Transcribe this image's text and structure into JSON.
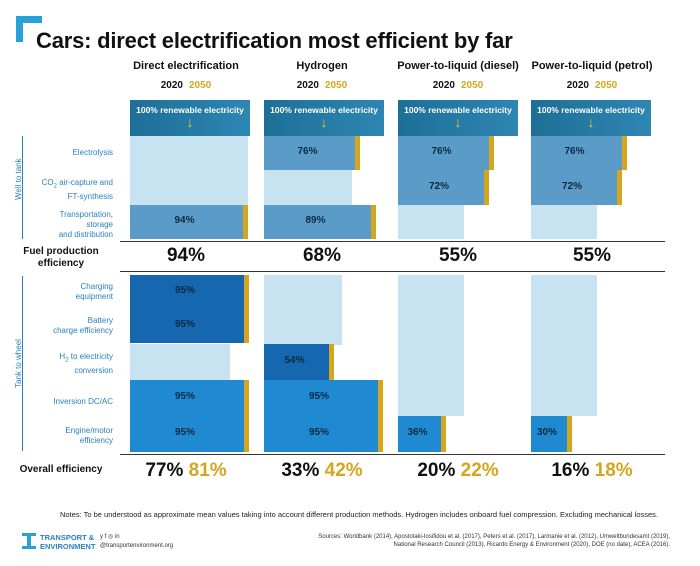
{
  "title": "Cars: direct electrification most efficient by far",
  "years": {
    "y1": "2020",
    "y2": "2050"
  },
  "columns": [
    {
      "name": "Direct electrification",
      "fuel_efficiency": "94%",
      "overall_2020": "77%",
      "overall_2050": "81%"
    },
    {
      "name": "Hydrogen",
      "fuel_efficiency": "68%",
      "overall_2020": "33%",
      "overall_2050": "42%"
    },
    {
      "name": "Power-to-liquid (diesel)",
      "fuel_efficiency": "55%",
      "overall_2020": "20%",
      "overall_2050": "22%"
    },
    {
      "name": "Power-to-liquid (petrol)",
      "fuel_efficiency": "55%",
      "overall_2020": "16%",
      "overall_2050": "18%"
    }
  ],
  "banner_text": "100% renewable electricity",
  "side_labels": {
    "well": "Well to tank",
    "tank": "Tank to wheel"
  },
  "row_labels": {
    "electrolysis": "Electrolysis",
    "co2_l1": "CO",
    "co2_sub": "2",
    "co2_l1b": " air-capture and",
    "co2_l2": "FT-synthesis",
    "transport_l1": "Transportation,",
    "transport_l2": "storage",
    "transport_l3": "and distribution",
    "charging_l1": "Charging",
    "charging_l2": "equipment",
    "battery_l1": "Battery",
    "battery_l2": "charge efficiency",
    "h2_l1": "H",
    "h2_sub": "2",
    "h2_l1b": " to electricity",
    "h2_l2": "conversion",
    "inversion": "Inversion DC/AC",
    "engine_l1": "Engine/motor",
    "engine_l2": "efficiency"
  },
  "fuel_label_l1": "Fuel production",
  "fuel_label_l2": "efficiency",
  "overall_label": "Overall efficiency",
  "notes": "Notes: To be understood as approximate mean values taking into account different production methods. Hydrogen includes onboard fuel compression. Excluding mechanical losses.",
  "sources_l1": "Sources: Worldbank (2014), Apostolaki-Iosifidou et al. (2017), Peters et al. (2017), Larmanie et al. (2012), Umweltbundesamt (2019),",
  "sources_l2": "National Research Council (2013), Ricardo Energy & Environment (2020), DOE (no date), ACEA (2016).",
  "logo": {
    "l1": "TRANSPORT &",
    "l2": "ENVIRONMENT"
  },
  "social": {
    "icons": "y f ◎ in",
    "handle": "@transportenvironment.org"
  },
  "colors": {
    "dark_blue": "#1567b0",
    "mid_blue": "#1f8ad2",
    "light_blue": "#c7e3f2",
    "steel_blue": "#5a9cc7",
    "gold": "#d4a51d"
  },
  "chart_data": {
    "type": "bar",
    "title": "Cars: direct electrification most efficient by far",
    "categories": [
      "Direct electrification",
      "Hydrogen",
      "Power-to-liquid (diesel)",
      "Power-to-liquid (petrol)"
    ],
    "stages": [
      "Electrolysis",
      "CO2 air-capture and FT-synthesis",
      "Transportation, storage and distribution",
      "Charging equipment",
      "Battery charge efficiency",
      "H2 to electricity conversion",
      "Inversion DC/AC",
      "Engine/motor efficiency"
    ],
    "segments": [
      {
        "col": 0,
        "row": 2,
        "value": 94,
        "label": "94%",
        "color": "steel"
      },
      {
        "col": 0,
        "row": 3,
        "value": 95,
        "label": "95%",
        "color": "dark"
      },
      {
        "col": 0,
        "row": 4,
        "value": 95,
        "label": "95%",
        "color": "dark"
      },
      {
        "col": 0,
        "row": 6,
        "value": 95,
        "label": "95%",
        "color": "mid"
      },
      {
        "col": 0,
        "row": 7,
        "value": 95,
        "label": "95%",
        "color": "mid"
      },
      {
        "col": 1,
        "row": 0,
        "value": 76,
        "label": "76%",
        "color": "steel"
      },
      {
        "col": 1,
        "row": 2,
        "value": 89,
        "label": "89%",
        "color": "steel"
      },
      {
        "col": 1,
        "row": 5,
        "value": 54,
        "label": "54%",
        "color": "dark"
      },
      {
        "col": 1,
        "row": 6,
        "value": 95,
        "label": "95%",
        "color": "mid"
      },
      {
        "col": 1,
        "row": 7,
        "value": 95,
        "label": "95%",
        "color": "mid"
      },
      {
        "col": 2,
        "row": 0,
        "value": 76,
        "label": "76%",
        "color": "steel"
      },
      {
        "col": 2,
        "row": 1,
        "value": 72,
        "label": "72%",
        "color": "steel"
      },
      {
        "col": 2,
        "row": 7,
        "value": 36,
        "label": "36%",
        "color": "mid"
      },
      {
        "col": 3,
        "row": 0,
        "value": 76,
        "label": "76%",
        "color": "steel"
      },
      {
        "col": 3,
        "row": 1,
        "value": 72,
        "label": "72%",
        "color": "steel"
      },
      {
        "col": 3,
        "row": 7,
        "value": 30,
        "label": "30%",
        "color": "mid"
      }
    ],
    "fuel_production_efficiency": [
      94,
      68,
      55,
      55
    ],
    "overall_efficiency_2020": [
      77,
      33,
      20,
      16
    ],
    "overall_efficiency_2050": [
      81,
      42,
      22,
      18
    ],
    "unit": "%"
  }
}
